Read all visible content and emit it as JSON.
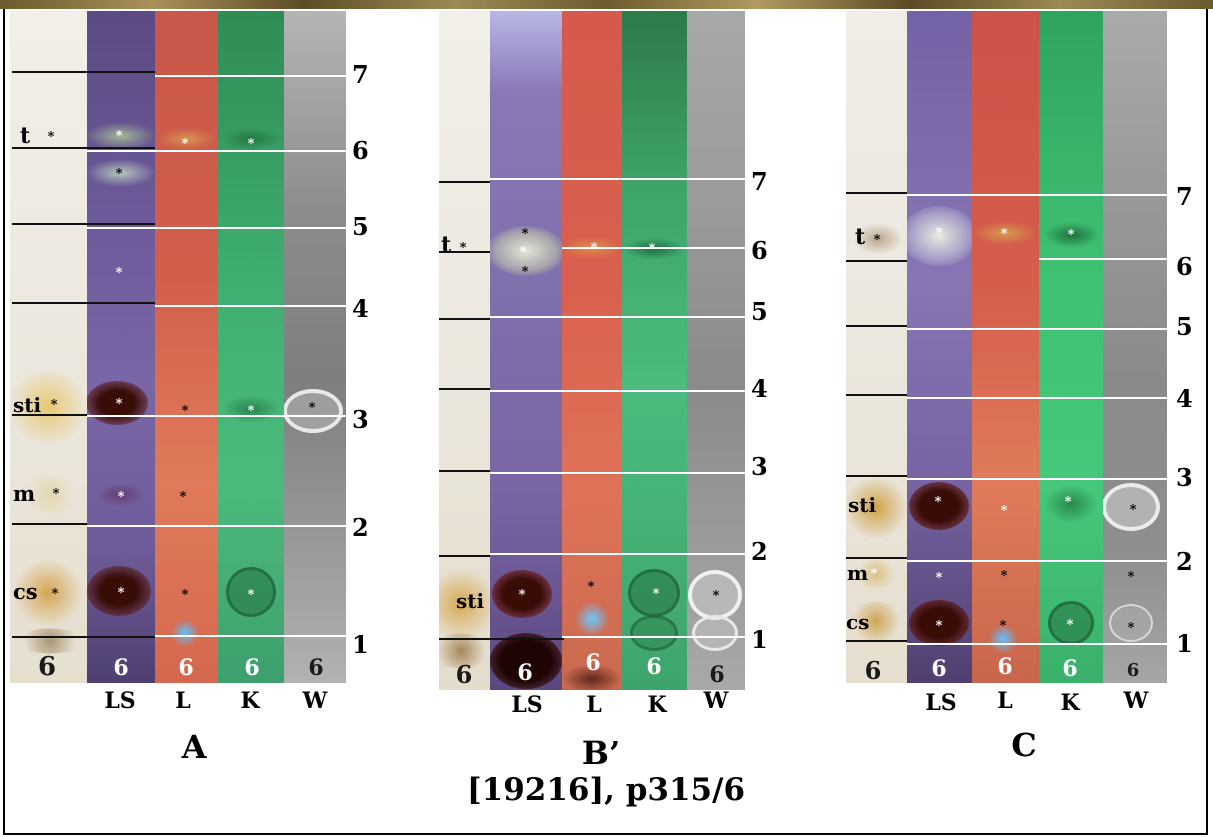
{
  "caption": "[19216], p315/6",
  "colors": {
    "white_light": "#e9e5dc",
    "LS": "#6f5a9b",
    "L": "#d85b4a",
    "K": "#3cae6e",
    "W": "#9b9b9b",
    "spot_dark": "#3a0c06",
    "spot_yellow": "#c99a34",
    "spot_blue": "#3fa6ff"
  },
  "panels": [
    {
      "title": "A",
      "sample": "6",
      "lanes": [
        "LS",
        "L",
        "K",
        "W"
      ],
      "markers": [
        "7",
        "6",
        "5",
        "4",
        "3",
        "2",
        "1"
      ],
      "spot_labels": [
        "t",
        "sti",
        "m",
        "cs"
      ]
    },
    {
      "title": "B’",
      "sample": "6",
      "lanes": [
        "LS",
        "L",
        "K",
        "W"
      ],
      "markers": [
        "7",
        "6",
        "5",
        "4",
        "3",
        "2",
        "1"
      ],
      "spot_labels": [
        "t",
        "sti"
      ]
    },
    {
      "title": "C",
      "sample": "6",
      "lanes": [
        "LS",
        "L",
        "K",
        "W"
      ],
      "markers": [
        "7",
        "6",
        "5",
        "4",
        "3",
        "2",
        "1"
      ],
      "spot_labels": [
        "t",
        "sti",
        "m",
        "cs"
      ]
    }
  ]
}
